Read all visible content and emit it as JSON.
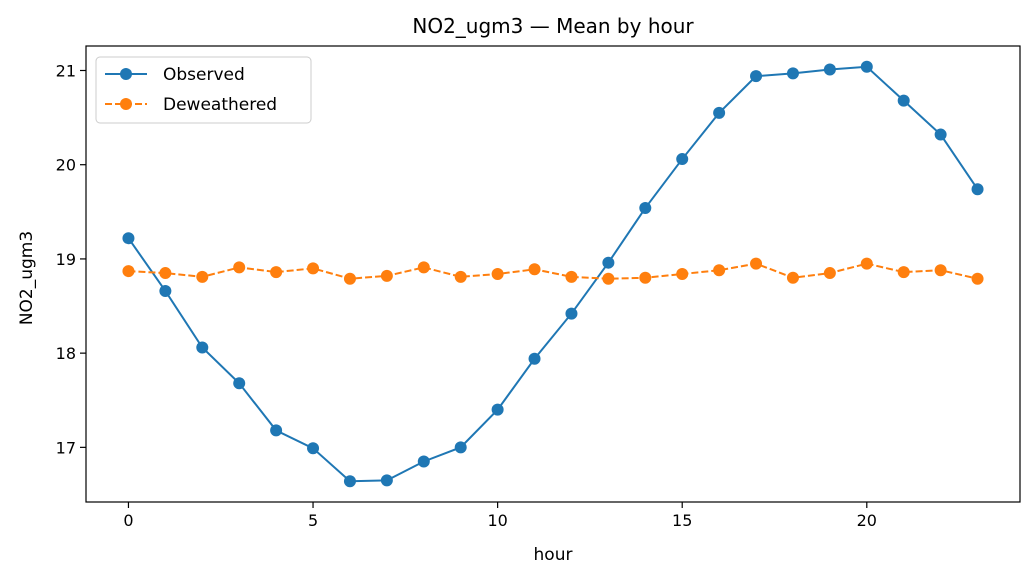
{
  "chart_data": {
    "type": "line",
    "title": "NO2_ugm3 — Mean by hour",
    "xlabel": "hour",
    "ylabel": "NO2_ugm3",
    "xlim": [
      -1.15,
      24.15
    ],
    "ylim": [
      16.42,
      21.26
    ],
    "xticks": [
      0,
      5,
      10,
      15,
      20
    ],
    "yticks": [
      17,
      18,
      19,
      20,
      21
    ],
    "grid": false,
    "legend_position": "top-left",
    "x": [
      0,
      1,
      2,
      3,
      4,
      5,
      6,
      7,
      8,
      9,
      10,
      11,
      12,
      13,
      14,
      15,
      16,
      17,
      18,
      19,
      20,
      21,
      22,
      23
    ],
    "series": [
      {
        "name": "Observed",
        "color": "#1f77b4",
        "line_style": "solid",
        "marker": "circle",
        "values": [
          19.22,
          18.66,
          18.06,
          17.68,
          17.18,
          16.99,
          16.64,
          16.65,
          16.85,
          17.0,
          17.4,
          17.94,
          18.42,
          18.96,
          19.54,
          20.06,
          20.55,
          20.94,
          20.97,
          21.01,
          21.04,
          20.68,
          20.32,
          19.74
        ]
      },
      {
        "name": "Deweathered",
        "color": "#ff7f0e",
        "line_style": "dashed",
        "marker": "circle",
        "values": [
          18.87,
          18.85,
          18.81,
          18.91,
          18.86,
          18.9,
          18.79,
          18.82,
          18.91,
          18.81,
          18.84,
          18.89,
          18.81,
          18.79,
          18.8,
          18.84,
          18.88,
          18.95,
          18.8,
          18.85,
          18.95,
          18.86,
          18.88,
          18.79
        ]
      }
    ]
  }
}
